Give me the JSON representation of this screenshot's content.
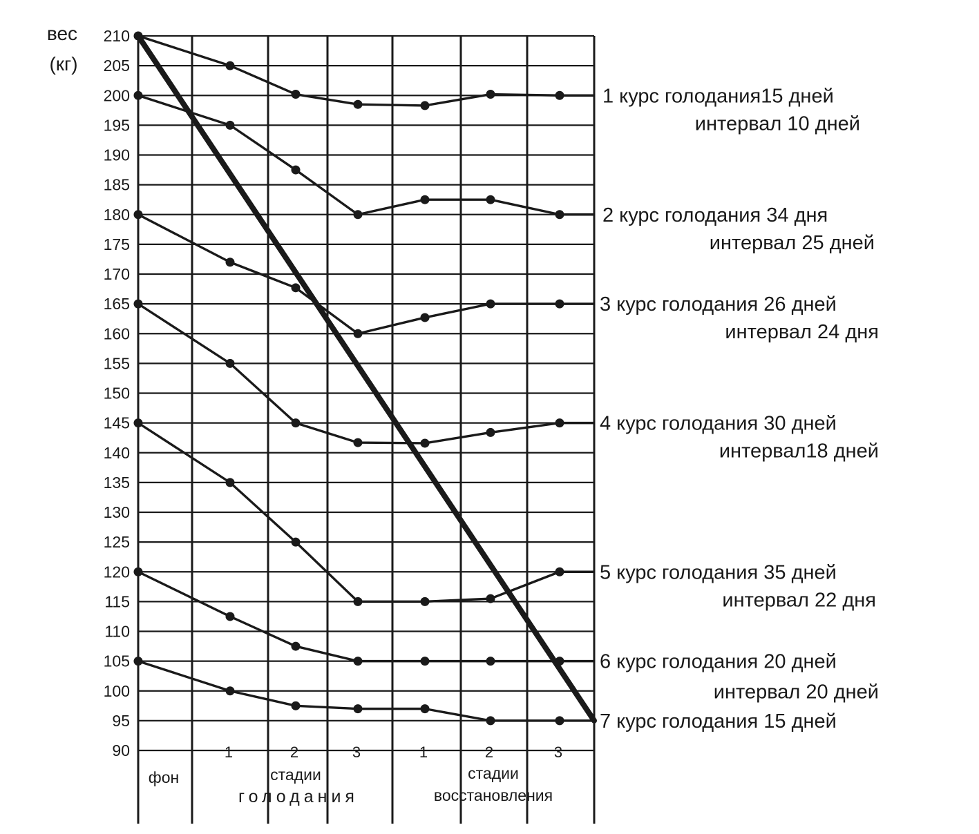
{
  "chart_data": {
    "type": "line",
    "y_title_line1": "вес",
    "y_title_line2": "(кг)",
    "ylim": [
      90,
      210
    ],
    "y_ticks": [
      210,
      205,
      200,
      195,
      190,
      185,
      180,
      175,
      170,
      165,
      160,
      155,
      150,
      145,
      140,
      135,
      130,
      125,
      120,
      115,
      110,
      105,
      100,
      95,
      90
    ],
    "x": [
      "фон",
      "1",
      "2",
      "3",
      "1",
      "2",
      "3"
    ],
    "x_groups": [
      {
        "label": "фон"
      },
      {
        "label_line1": "стадии",
        "label_line2": "голодания"
      },
      {
        "label_line1": "стадии",
        "label_line2": "восстановления"
      }
    ],
    "series": [
      {
        "values": [
          210,
          205,
          200.2,
          198.5,
          198.3,
          200.2,
          200
        ],
        "label_line1": "1 курс голодания15 дней",
        "label_line2": "интервал 10 дней"
      },
      {
        "values": [
          200,
          195,
          187.5,
          180,
          182.5,
          182.5,
          180
        ],
        "label_line1": "2 курс голодания 34 дня",
        "label_line2": "интервал 25 дней"
      },
      {
        "values": [
          180,
          172,
          167.7,
          160,
          162.7,
          165,
          165
        ],
        "label_line1": "3 курс голодания 26 дней",
        "label_line2": "интервал 24 дня"
      },
      {
        "values": [
          165,
          155,
          145,
          141.7,
          141.6,
          143.4,
          145
        ],
        "label_line1": "4 курс голодания 30 дней",
        "label_line2": "интервал18 дней"
      },
      {
        "values": [
          145,
          135,
          125,
          115,
          115,
          115.5,
          120
        ],
        "label_line1": "5 курс голодания 35 дней",
        "label_line2": "интервал 22 дня"
      },
      {
        "values": [
          120,
          112.5,
          107.5,
          105,
          105,
          105,
          105
        ],
        "label_line1": "6 курс голодания 20 дней",
        "label_line2": "интервал 20 дней"
      },
      {
        "values": [
          105,
          100,
          97.5,
          97,
          97,
          95,
          95
        ],
        "label_line1": "7 курс голодания 15 дней",
        "label_line2": ""
      }
    ],
    "trend_line": {
      "from": 210,
      "to": 95
    },
    "grid": true
  }
}
